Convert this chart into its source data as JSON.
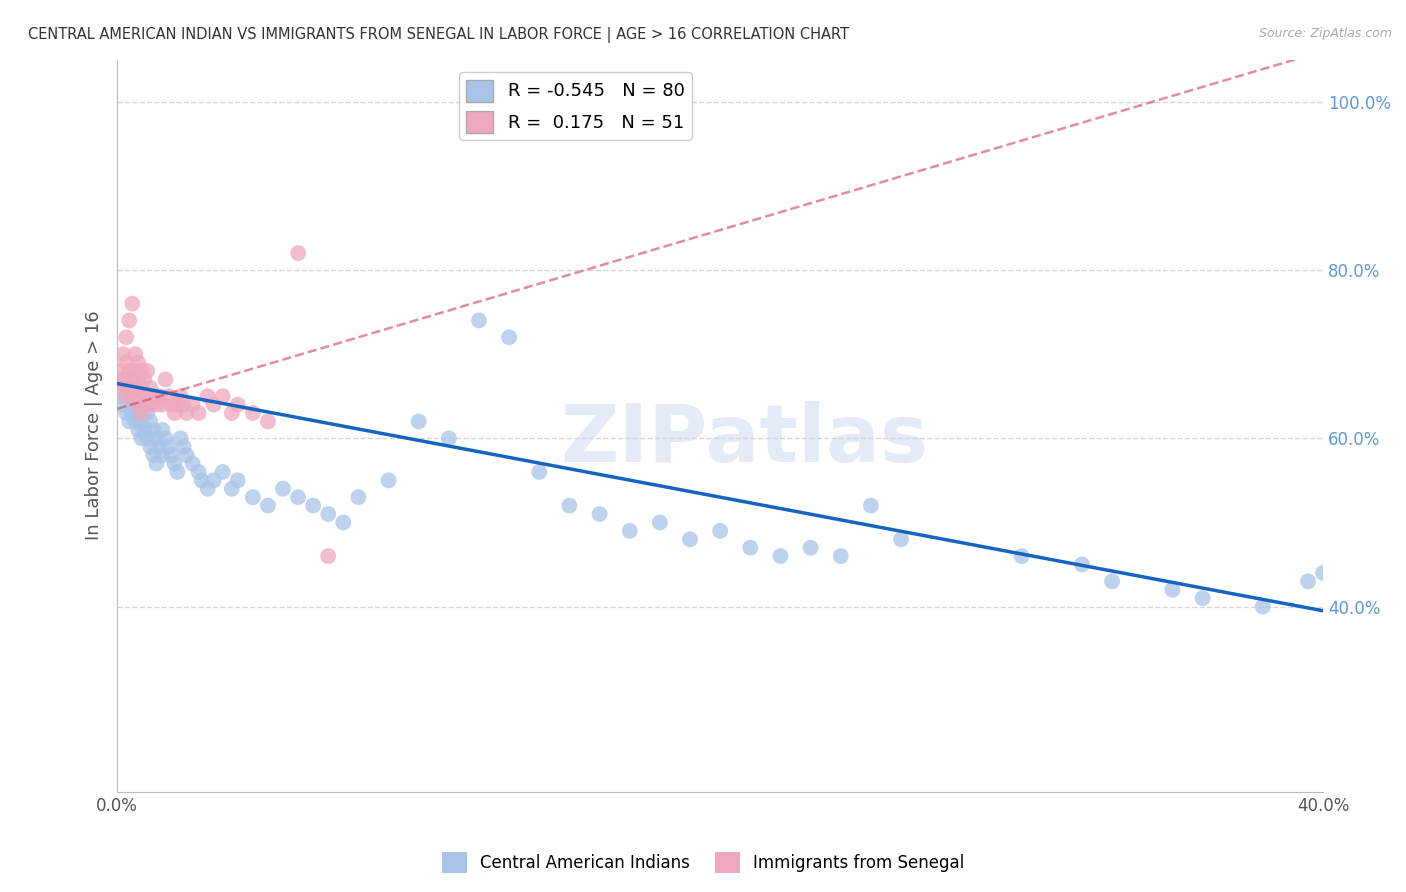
{
  "title": "CENTRAL AMERICAN INDIAN VS IMMIGRANTS FROM SENEGAL IN LABOR FORCE | AGE > 16 CORRELATION CHART",
  "source": "Source: ZipAtlas.com",
  "ylabel": "In Labor Force | Age > 16",
  "xlim": [
    0.0,
    0.4
  ],
  "ylim": [
    0.18,
    1.05
  ],
  "xtick_positions": [
    0.0,
    0.05,
    0.1,
    0.15,
    0.2,
    0.25,
    0.3,
    0.35,
    0.4
  ],
  "xtick_labels": [
    "0.0%",
    "",
    "",
    "",
    "",
    "",
    "",
    "",
    "40.0%"
  ],
  "ytick_positions": [
    0.4,
    0.6,
    0.8,
    1.0
  ],
  "ytick_labels": [
    "40.0%",
    "60.0%",
    "80.0%",
    "100.0%"
  ],
  "blue_color": "#a8c4e8",
  "pink_color": "#f0a8bc",
  "blue_line_color": "#1565c0",
  "pink_line_color": "#d04060",
  "watermark_text": "ZIPatlas",
  "legend_R_blue": "-0.545",
  "legend_N_blue": "80",
  "legend_R_pink": "0.175",
  "legend_N_pink": "51",
  "blue_trend_x": [
    0.0,
    0.4
  ],
  "blue_trend_y": [
    0.665,
    0.395
  ],
  "pink_trend_x": [
    0.0,
    0.08
  ],
  "pink_trend_y": [
    0.635,
    0.72
  ],
  "blue_scatter_x": [
    0.001,
    0.002,
    0.002,
    0.003,
    0.003,
    0.004,
    0.004,
    0.005,
    0.005,
    0.005,
    0.006,
    0.006,
    0.007,
    0.007,
    0.007,
    0.008,
    0.008,
    0.009,
    0.009,
    0.01,
    0.01,
    0.011,
    0.011,
    0.012,
    0.012,
    0.013,
    0.013,
    0.014,
    0.015,
    0.015,
    0.016,
    0.017,
    0.018,
    0.019,
    0.02,
    0.021,
    0.022,
    0.023,
    0.025,
    0.027,
    0.028,
    0.03,
    0.032,
    0.035,
    0.038,
    0.04,
    0.045,
    0.05,
    0.055,
    0.06,
    0.065,
    0.07,
    0.075,
    0.08,
    0.09,
    0.1,
    0.11,
    0.12,
    0.13,
    0.14,
    0.15,
    0.16,
    0.17,
    0.18,
    0.19,
    0.2,
    0.21,
    0.22,
    0.23,
    0.24,
    0.25,
    0.26,
    0.3,
    0.32,
    0.33,
    0.35,
    0.36,
    0.38,
    0.395,
    0.4
  ],
  "blue_scatter_y": [
    0.65,
    0.67,
    0.64,
    0.66,
    0.63,
    0.65,
    0.62,
    0.64,
    0.66,
    0.63,
    0.65,
    0.62,
    0.64,
    0.61,
    0.63,
    0.62,
    0.6,
    0.64,
    0.61,
    0.63,
    0.6,
    0.62,
    0.59,
    0.61,
    0.58,
    0.6,
    0.57,
    0.59,
    0.61,
    0.58,
    0.6,
    0.59,
    0.58,
    0.57,
    0.56,
    0.6,
    0.59,
    0.58,
    0.57,
    0.56,
    0.55,
    0.54,
    0.55,
    0.56,
    0.54,
    0.55,
    0.53,
    0.52,
    0.54,
    0.53,
    0.52,
    0.51,
    0.5,
    0.53,
    0.55,
    0.62,
    0.6,
    0.74,
    0.72,
    0.56,
    0.52,
    0.51,
    0.49,
    0.5,
    0.48,
    0.49,
    0.47,
    0.46,
    0.47,
    0.46,
    0.52,
    0.48,
    0.46,
    0.45,
    0.43,
    0.42,
    0.41,
    0.4,
    0.43,
    0.44
  ],
  "pink_scatter_x": [
    0.001,
    0.001,
    0.002,
    0.002,
    0.003,
    0.003,
    0.003,
    0.004,
    0.004,
    0.004,
    0.005,
    0.005,
    0.005,
    0.006,
    0.006,
    0.006,
    0.007,
    0.007,
    0.007,
    0.008,
    0.008,
    0.008,
    0.009,
    0.009,
    0.01,
    0.01,
    0.011,
    0.011,
    0.012,
    0.013,
    0.014,
    0.015,
    0.016,
    0.017,
    0.018,
    0.019,
    0.02,
    0.021,
    0.022,
    0.023,
    0.025,
    0.027,
    0.03,
    0.032,
    0.035,
    0.038,
    0.04,
    0.045,
    0.05,
    0.06,
    0.07
  ],
  "pink_scatter_y": [
    0.68,
    0.66,
    0.7,
    0.67,
    0.69,
    0.72,
    0.65,
    0.74,
    0.68,
    0.66,
    0.76,
    0.67,
    0.65,
    0.7,
    0.68,
    0.65,
    0.69,
    0.67,
    0.64,
    0.68,
    0.66,
    0.63,
    0.67,
    0.65,
    0.68,
    0.65,
    0.66,
    0.64,
    0.65,
    0.64,
    0.65,
    0.64,
    0.67,
    0.65,
    0.64,
    0.63,
    0.64,
    0.65,
    0.64,
    0.63,
    0.64,
    0.63,
    0.65,
    0.64,
    0.65,
    0.63,
    0.64,
    0.63,
    0.62,
    0.82,
    0.46
  ],
  "background_color": "#ffffff",
  "grid_color": "#cccccc",
  "title_color": "#333333",
  "axis_label_color": "#555555",
  "right_tick_color": "#5b9bd5",
  "bottom_tick_color": "#555555"
}
